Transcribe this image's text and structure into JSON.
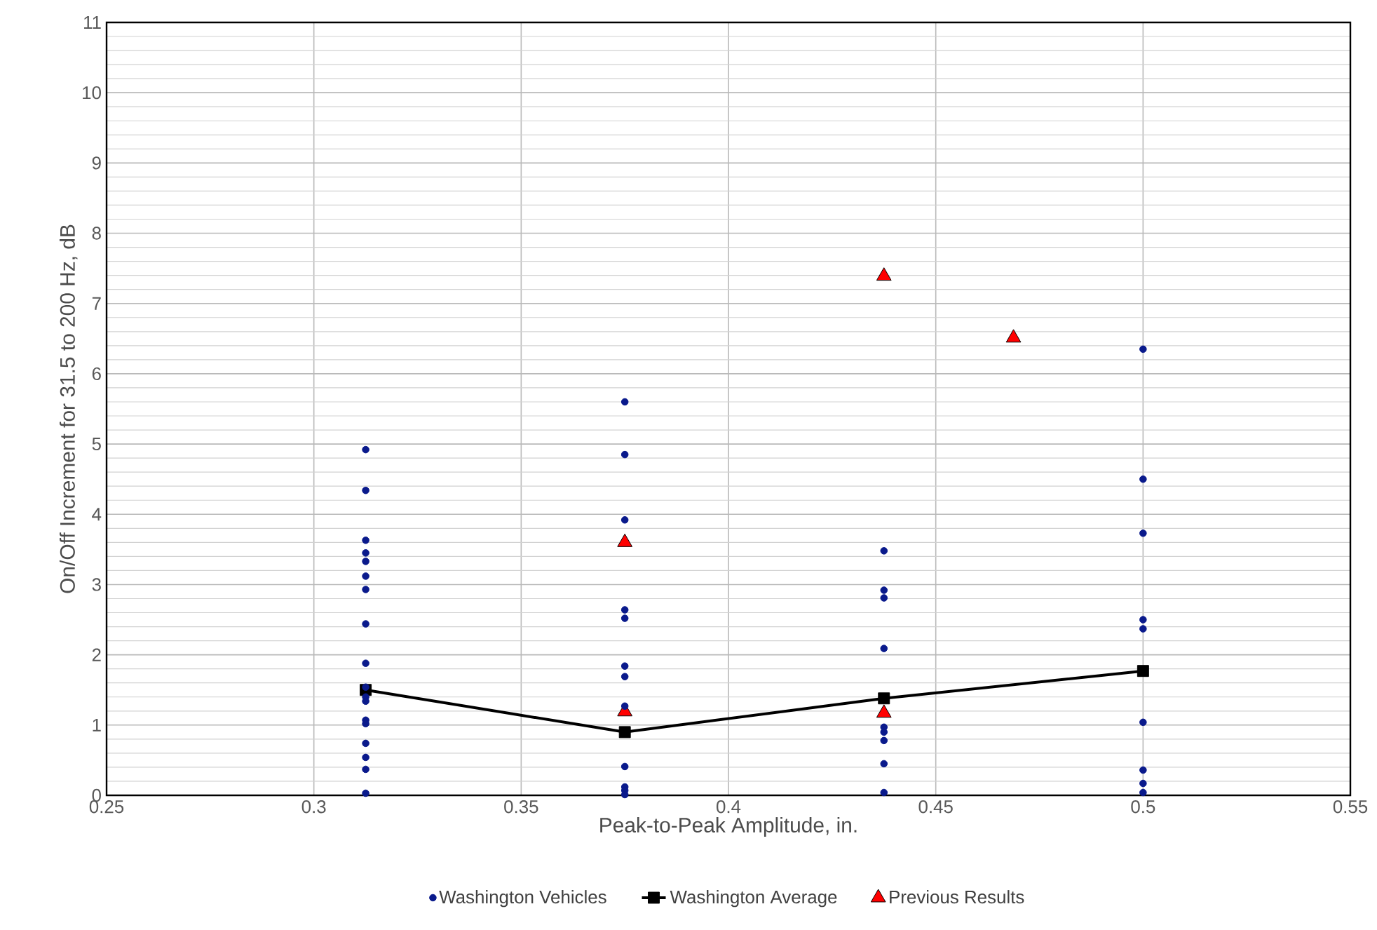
{
  "chart_data": {
    "type": "scatter",
    "xlabel": "Peak-to-Peak Amplitude, in.",
    "ylabel": "On/Off Increment for 31.5 to 200 Hz, dB",
    "xlim": [
      0.25,
      0.55
    ],
    "ylim": [
      0,
      11
    ],
    "xticks": [
      0.25,
      0.3,
      0.35,
      0.4,
      0.45,
      0.5,
      0.55
    ],
    "yticks": [
      0,
      1,
      2,
      3,
      4,
      5,
      6,
      7,
      8,
      9,
      10,
      11
    ],
    "grid": true,
    "legend": "bottom",
    "series": [
      {
        "name": "Washington Vehicles",
        "marker": "circle",
        "color": "#0a1a8c",
        "x": [
          0.3125,
          0.3125,
          0.3125,
          0.3125,
          0.3125,
          0.3125,
          0.3125,
          0.3125,
          0.3125,
          0.3125,
          0.3125,
          0.3125,
          0.3125,
          0.3125,
          0.3125,
          0.3125,
          0.3125,
          0.3125,
          0.375,
          0.375,
          0.375,
          0.375,
          0.375,
          0.375,
          0.375,
          0.375,
          0.375,
          0.375,
          0.375,
          0.375,
          0.4375,
          0.4375,
          0.4375,
          0.4375,
          0.4375,
          0.4375,
          0.4375,
          0.4375,
          0.4375,
          0.5,
          0.5,
          0.5,
          0.5,
          0.5,
          0.5,
          0.5,
          0.5,
          0.5
        ],
        "values": [
          4.92,
          4.34,
          3.63,
          3.45,
          3.33,
          3.12,
          2.93,
          2.44,
          1.88,
          1.54,
          1.4,
          1.34,
          1.07,
          1.02,
          0.74,
          0.54,
          0.37,
          0.03,
          5.6,
          4.85,
          3.92,
          2.64,
          2.52,
          1.84,
          1.69,
          1.27,
          0.41,
          0.12,
          0.07,
          0.01,
          3.48,
          2.92,
          2.81,
          2.09,
          0.97,
          0.9,
          0.78,
          0.45,
          0.04,
          6.35,
          4.5,
          3.73,
          2.5,
          2.37,
          1.04,
          0.36,
          0.17,
          0.04
        ]
      },
      {
        "name": "Washington Average",
        "type": "line",
        "marker": "square",
        "line_style": "solid",
        "color": "#000000",
        "x": [
          0.3125,
          0.375,
          0.4375,
          0.5
        ],
        "values": [
          1.5,
          0.9,
          1.38,
          1.77
        ]
      },
      {
        "name": "Previous Results",
        "marker": "triangle",
        "color": "#ff0000",
        "x": [
          0.375,
          0.375,
          0.4375,
          0.4375,
          0.46875
        ],
        "values": [
          3.6,
          1.19,
          7.39,
          1.17,
          6.51
        ]
      }
    ]
  }
}
